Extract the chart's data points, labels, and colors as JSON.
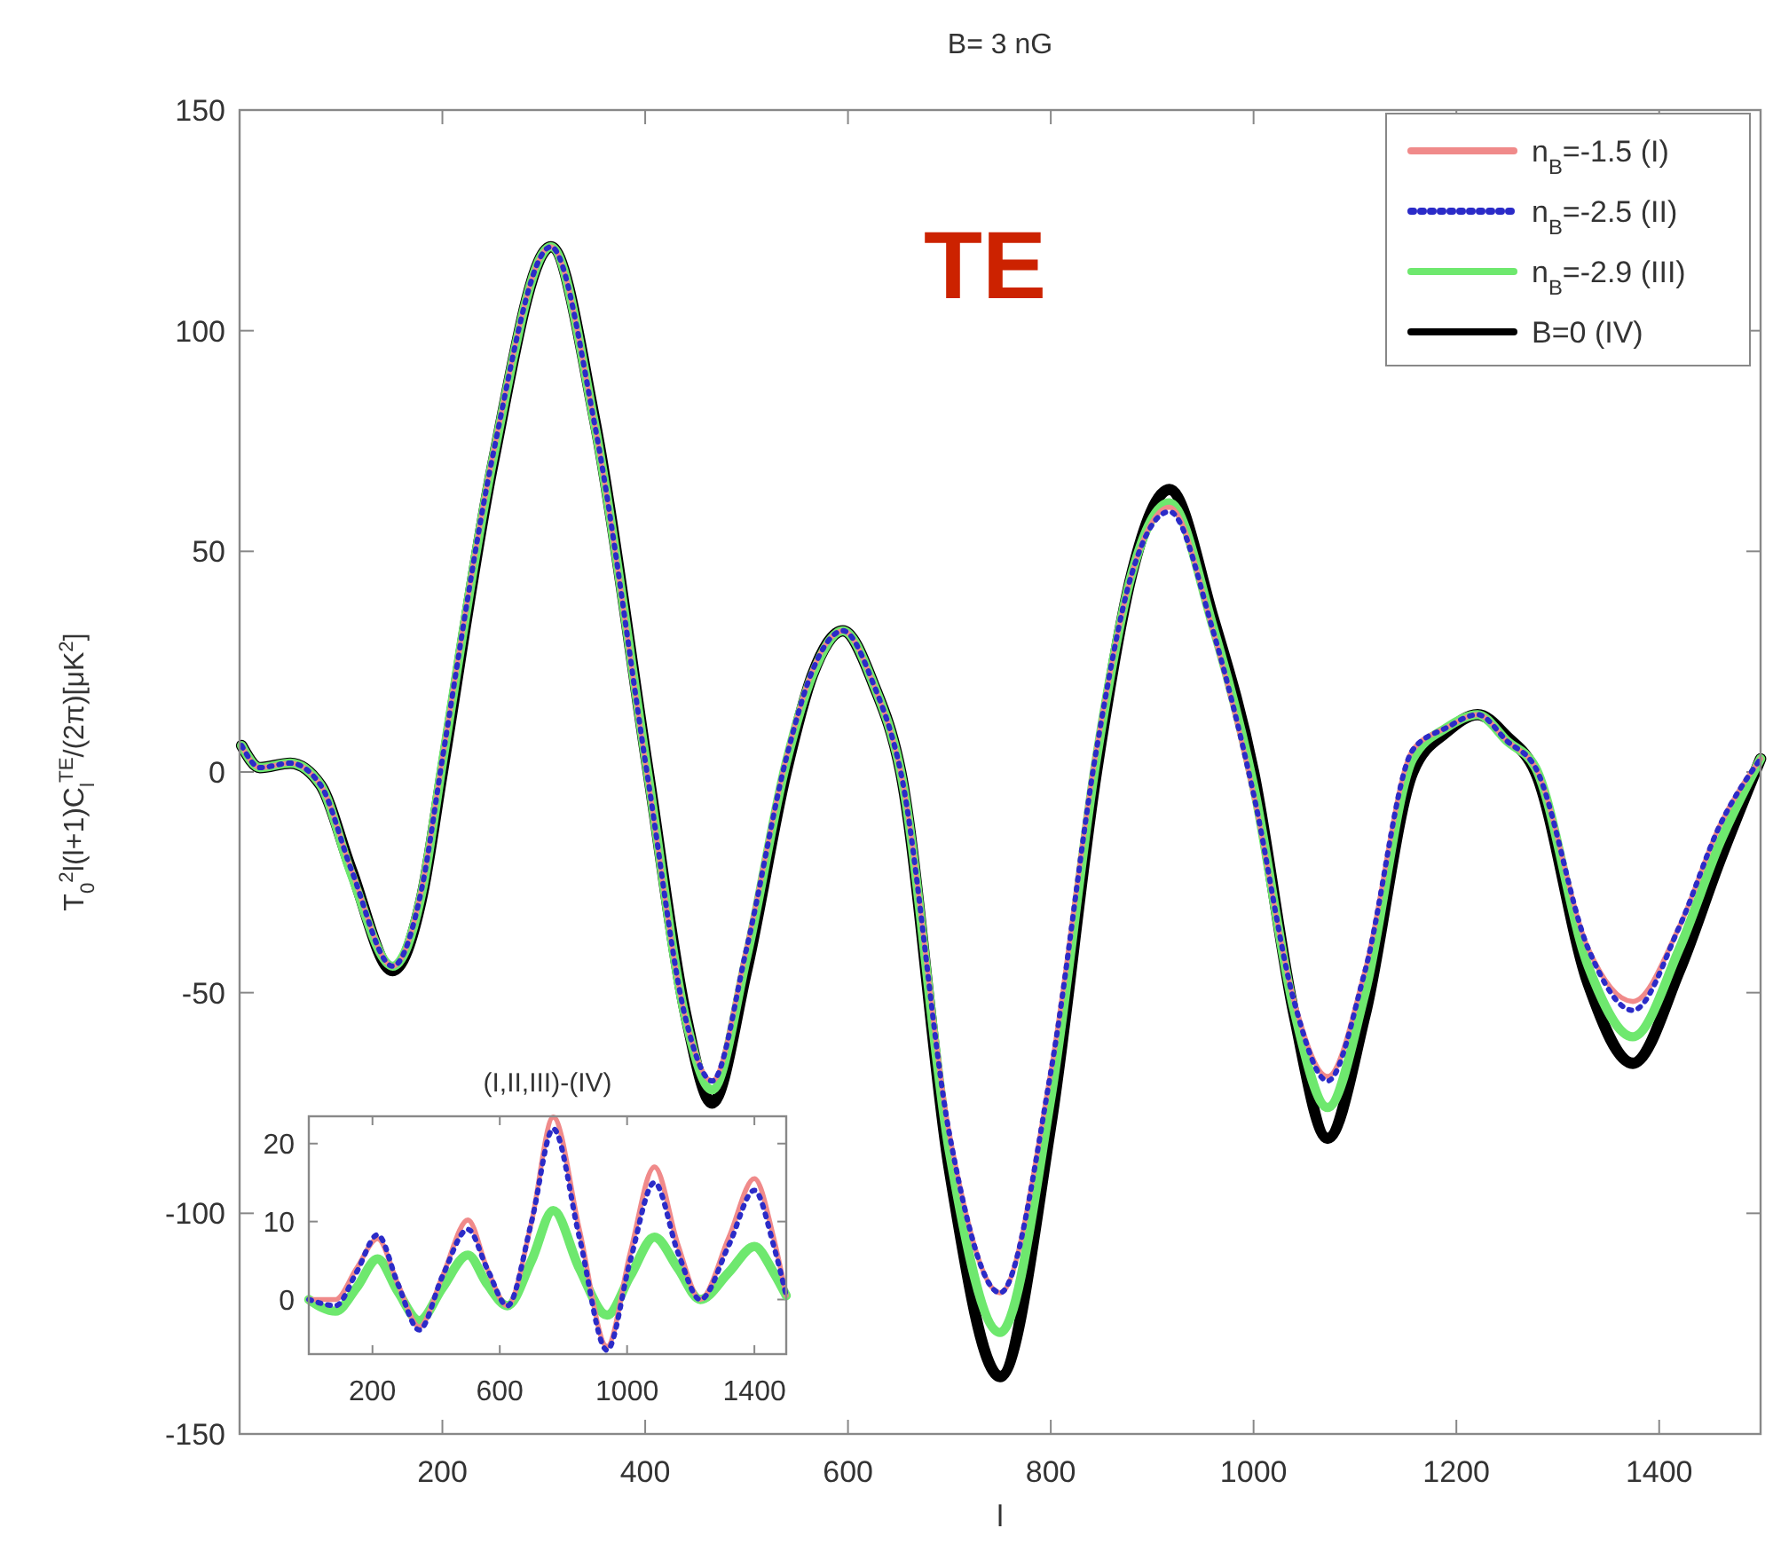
{
  "chart_data": [
    {
      "type": "line",
      "title": "B= 3 nG",
      "xlabel": "l",
      "ylabel": "T$_{0}$$^{2}$l(l+1)C$_{l}$$^{TE}$/(2π)[μK$^{2}$]",
      "annotations": [
        "TE"
      ],
      "xlim": [
        0,
        1500
      ],
      "ylim": [
        -150,
        150
      ],
      "xticks": [
        200,
        400,
        600,
        800,
        1000,
        1200,
        1400
      ],
      "yticks": [
        -150,
        -100,
        -50,
        0,
        50,
        100,
        150
      ],
      "grid": false,
      "legend": "top right",
      "x": [
        2,
        20,
        50,
        80,
        110,
        151,
        180,
        200,
        250,
        307,
        350,
        403,
        440,
        466,
        500,
        539,
        565,
        595,
        625,
        652,
        700,
        750,
        800,
        845,
        880,
        917,
        960,
        1000,
        1040,
        1073,
        1110,
        1157,
        1190,
        1221,
        1250,
        1278,
        1330,
        1374,
        1420,
        1460,
        1500
      ],
      "series": [
        {
          "name": "n$_{B}$=-1.5 (I)",
          "color": "#f08a8a",
          "line_style": "solid",
          "values": [
            6,
            1,
            2,
            -3,
            -22,
            -44,
            -26,
            3,
            72,
            119,
            79,
            -2,
            -56,
            -70,
            -40,
            3,
            23,
            32,
            20,
            0,
            -82,
            -118,
            -68,
            5,
            45,
            60,
            32,
            -5,
            -52,
            -69,
            -45,
            5,
            10,
            13,
            7,
            1,
            -40,
            -52,
            -35,
            -12,
            3
          ]
        },
        {
          "name": "n$_{B}$=-2.5 (II)",
          "color": "#2b2bc8",
          "line_style": "dotted",
          "values": [
            6,
            1,
            2,
            -3,
            -22,
            -44,
            -26,
            3,
            72,
            119,
            79,
            -2,
            -56,
            -70,
            -40,
            3,
            23,
            32,
            20,
            0,
            -82,
            -118,
            -68,
            5,
            45,
            59,
            32,
            -5,
            -52,
            -70,
            -45,
            5,
            10,
            13,
            7,
            1,
            -40,
            -54,
            -35,
            -12,
            3
          ]
        },
        {
          "name": "n$_{B}$=-2.9 (III)",
          "color": "#6ee86e",
          "line_style": "solid",
          "values": [
            6,
            1,
            2,
            -3,
            -23,
            -44,
            -27,
            2,
            71,
            119,
            79,
            -1,
            -56,
            -72,
            -42,
            2,
            22,
            32,
            20,
            0,
            -86,
            -127,
            -74,
            3,
            45,
            61,
            33,
            -3,
            -54,
            -76,
            -50,
            3,
            10,
            13,
            7,
            1,
            -44,
            -60,
            -40,
            -16,
            3
          ]
        },
        {
          "name": "B=0 (IV)",
          "color": "#000000",
          "line_style": "solid",
          "values": [
            6,
            1,
            2,
            -3,
            -22,
            -45,
            -28,
            0,
            70,
            119,
            80,
            0,
            -55,
            -75,
            -45,
            0,
            22,
            32,
            20,
            0,
            -90,
            -137,
            -80,
            0,
            45,
            64,
            35,
            0,
            -55,
            -83,
            -55,
            0,
            9,
            13,
            8,
            0,
            -48,
            -66,
            -45,
            -20,
            3
          ]
        }
      ]
    },
    {
      "type": "line",
      "title": "(I,II,III)-(IV)",
      "xlim": [
        0,
        1500
      ],
      "ylim": [
        -7,
        23.5
      ],
      "xticks": [
        200,
        600,
        1000,
        1400
      ],
      "yticks": [
        0,
        10,
        20
      ],
      "grid": false,
      "x": [
        0,
        40,
        84,
        150,
        216,
        280,
        347,
        420,
        500,
        560,
        624,
        700,
        768,
        850,
        937,
        1010,
        1086,
        1160,
        1230,
        1320,
        1400,
        1460,
        1500
      ],
      "series": [
        {
          "color": "#f08a8a",
          "line_style": "solid",
          "values": [
            0,
            0,
            0,
            4,
            7.8,
            2,
            -3.5,
            3,
            10.2,
            4,
            -0.8,
            10,
            23.4,
            9,
            -6,
            6,
            17,
            7,
            0,
            8,
            15.5,
            8,
            0.5
          ]
        },
        {
          "color": "#2b2bc8",
          "line_style": "dotted",
          "values": [
            0,
            -0.5,
            -0.8,
            3.5,
            8.3,
            2,
            -3.9,
            3,
            9,
            4,
            -0.8,
            10,
            21.9,
            8,
            -6.5,
            5,
            15,
            6,
            0,
            7,
            14,
            7,
            0.5
          ]
        },
        {
          "color": "#6ee86e",
          "line_style": "solid",
          "values": [
            0,
            -1,
            -1.5,
            1.5,
            5.2,
            1,
            -2.7,
            1.5,
            5.7,
            2,
            -0.8,
            5,
            11.4,
            4,
            -2,
            3,
            8,
            4,
            0,
            3.5,
            6.8,
            3.5,
            0.5
          ]
        }
      ]
    }
  ]
}
